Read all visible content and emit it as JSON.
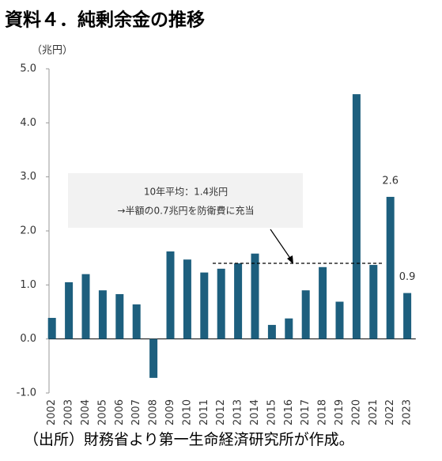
{
  "chart_data": {
    "type": "bar",
    "title": "資料４．純剰余金の推移",
    "y_axis_label": "（兆円）",
    "source": "（出所）財務省より第一生命経済研究所が作成。",
    "categories": [
      "2002",
      "2003",
      "2004",
      "2005",
      "2006",
      "2007",
      "2008",
      "2009",
      "2010",
      "2011",
      "2012",
      "2013",
      "2014",
      "2015",
      "2016",
      "2017",
      "2018",
      "2019",
      "2020",
      "2021",
      "2022",
      "2023"
    ],
    "values": [
      0.39,
      1.05,
      1.2,
      0.9,
      0.83,
      0.64,
      -0.72,
      1.62,
      1.47,
      1.23,
      1.3,
      1.4,
      1.58,
      0.26,
      0.38,
      0.9,
      1.33,
      0.69,
      4.53,
      1.37,
      2.63,
      0.85
    ],
    "value_labels": [
      null,
      null,
      null,
      null,
      null,
      null,
      null,
      null,
      null,
      null,
      null,
      null,
      null,
      null,
      null,
      null,
      null,
      null,
      null,
      null,
      "2.6",
      "0.9"
    ],
    "color": "#1d5f7e",
    "ylim": [
      -1,
      5
    ],
    "yticks": [
      {
        "value": -1,
        "label": "-1.0"
      },
      {
        "value": 0,
        "label": "0.0"
      },
      {
        "value": 1,
        "label": "1.0"
      },
      {
        "value": 2,
        "label": "2.0"
      },
      {
        "value": 3,
        "label": "3.0"
      },
      {
        "value": 4,
        "label": "4.0"
      },
      {
        "value": 5,
        "label": "5.0"
      }
    ],
    "grid": false,
    "annotation": {
      "lines": [
        "10年平均：1.4兆円",
        "→半額の0.7兆円を防衛費に充当"
      ]
    },
    "reference_line": {
      "value": 1.4,
      "start": "2012",
      "end": "2021"
    }
  }
}
